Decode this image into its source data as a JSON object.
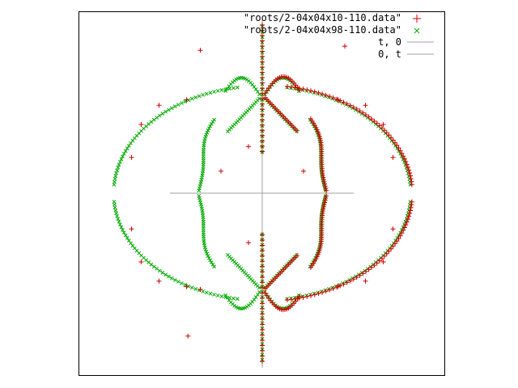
{
  "chart_data": {
    "type": "scatter",
    "title": "",
    "xlabel": "",
    "ylabel": "",
    "xlim": [
      -1.3,
      1.3
    ],
    "ylim": [
      -1.3,
      1.3
    ],
    "grid": false,
    "legend_placement": "top-right",
    "series": [
      {
        "name": "\"roots/2-04x04x10-110.data\"",
        "marker": "plus",
        "color": "#cc0000",
        "x_sample": [
          -0.45,
          0.6,
          -0.1,
          -0.54,
          -0.95,
          -0.88,
          -0.75,
          -0.55,
          -0.3,
          0.3,
          0.55,
          0.75,
          0.88,
          0.95,
          -0.95,
          -0.88,
          -0.75,
          -0.55,
          0.55,
          0.75,
          0.88,
          0.95,
          -0.45,
          -0.1
        ],
        "y_sample": [
          1.04,
          1.07,
          0.34,
          -1.04,
          0.26,
          0.5,
          0.64,
          0.68,
          0.16,
          0.16,
          0.68,
          0.64,
          0.5,
          0.26,
          -0.26,
          -0.5,
          -0.64,
          -0.68,
          -0.68,
          -0.64,
          -0.5,
          -0.26,
          -0.7,
          -0.36
        ]
      },
      {
        "name": "\"roots/2-04x04x98-110.data\"",
        "marker": "cross",
        "color": "#00aa00"
      },
      {
        "name": "t, 0",
        "marker": "line",
        "color": "#a0a0a0"
      },
      {
        "name": "0, t",
        "marker": "line",
        "color": "#a0a0a0"
      }
    ]
  }
}
